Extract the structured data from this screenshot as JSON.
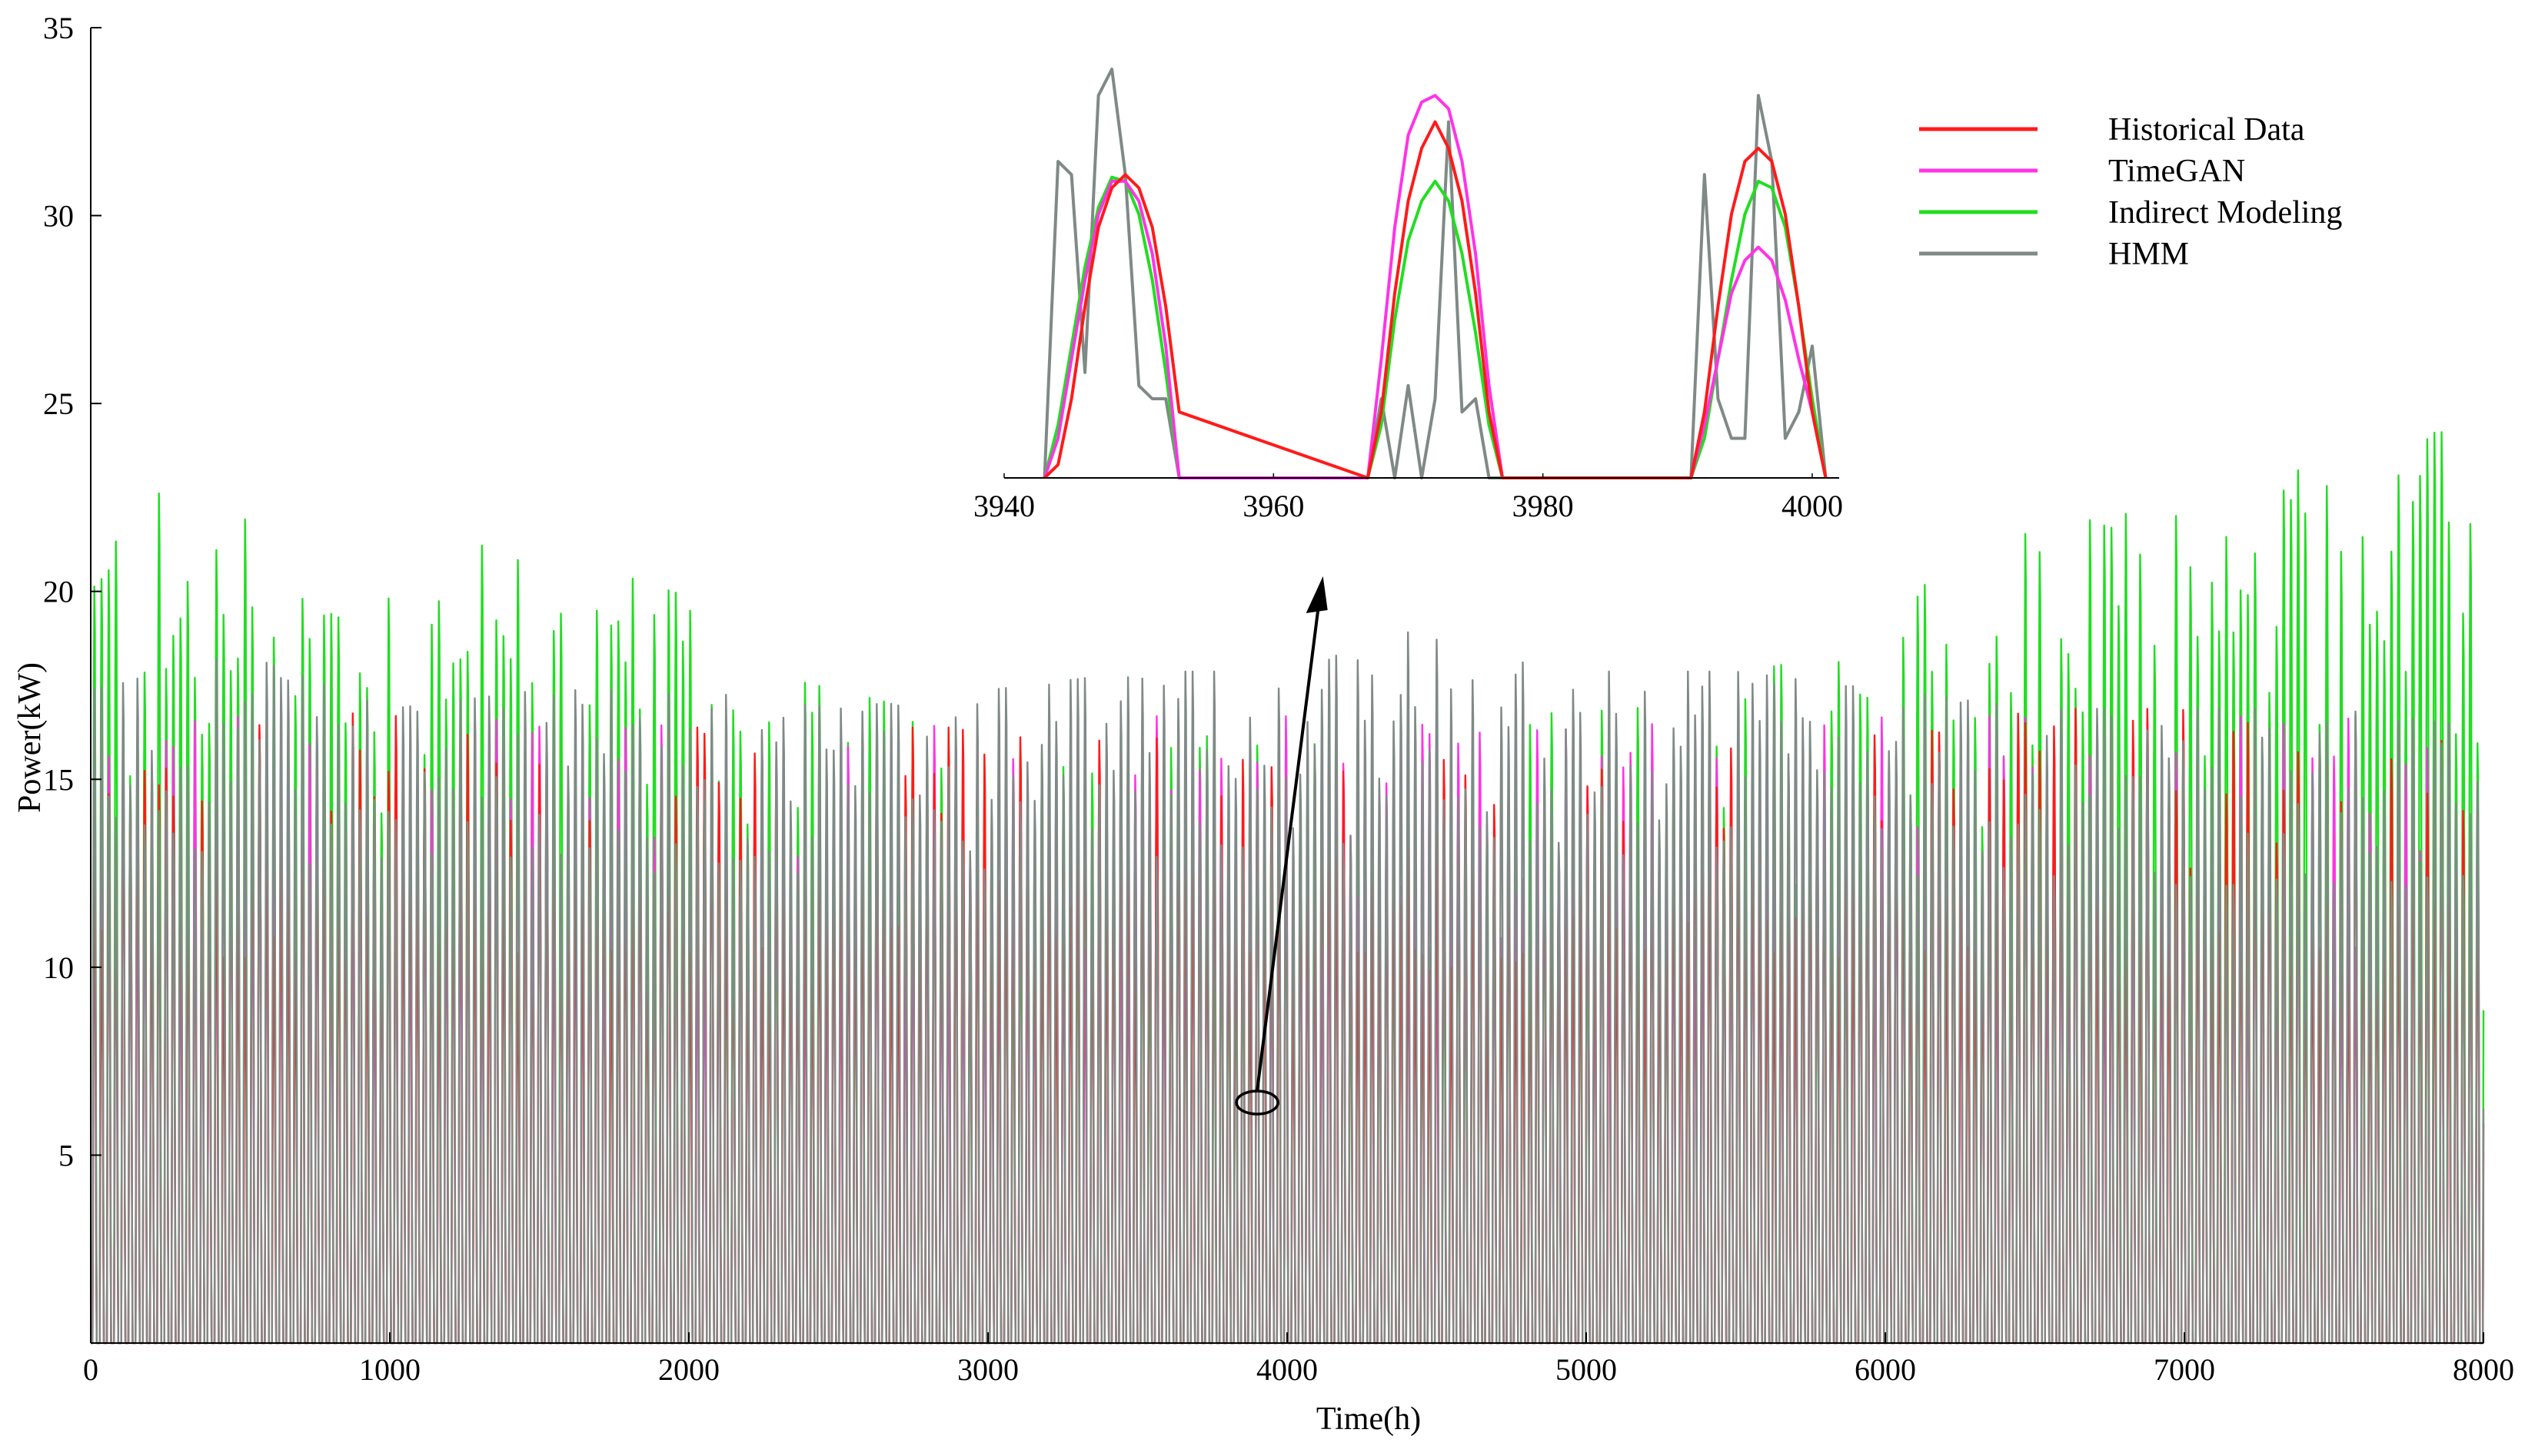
{
  "chart_data": {
    "type": "line",
    "title": "",
    "xlabel": "Time(h)",
    "ylabel": "Power(kW)",
    "xlim": [
      0,
      8000
    ],
    "ylim": [
      0,
      35
    ],
    "x_ticks": [
      "0",
      "1000",
      "2000",
      "3000",
      "4000",
      "5000",
      "6000",
      "7000",
      "8000"
    ],
    "y_ticks": [
      "5",
      "10",
      "15",
      "20",
      "25",
      "30",
      "35"
    ],
    "legend_position": "top-right",
    "legend": [
      {
        "name": "Historical Data",
        "color": "#ff1a1a"
      },
      {
        "name": "TimeGAN",
        "color": "#ff33e6"
      },
      {
        "name": "Indirect Modeling",
        "color": "#22dd22"
      },
      {
        "name": "HMM",
        "color": "#7f8a86"
      }
    ],
    "main_peak_envelope": {
      "x": [
        0,
        500,
        1000,
        1500,
        2000,
        2500,
        3000,
        3500,
        4000,
        4500,
        5000,
        5500,
        6000,
        6500,
        7000,
        7500,
        8000
      ],
      "Historical Data": [
        16,
        16.5,
        17,
        16.5,
        16.5,
        16.5,
        16.5,
        16.5,
        15.5,
        16,
        15.5,
        16,
        16.5,
        17,
        17,
        16.5,
        16
      ],
      "TimeGAN": [
        16.5,
        16.8,
        16.5,
        16.8,
        16.5,
        16.5,
        16.8,
        16.8,
        16.8,
        16.8,
        16.8,
        16.8,
        16.8,
        16.8,
        16.8,
        16.8,
        16.5
      ],
      "Indirect Modeling": [
        23,
        22.5,
        21.5,
        21.3,
        20,
        17.5,
        16.5,
        16.5,
        16,
        16.5,
        17,
        17.5,
        20,
        21.8,
        22.5,
        24.2,
        24.5
      ],
      "HMM": [
        17.5,
        18.5,
        17,
        17.5,
        17.5,
        17,
        17.5,
        18,
        18,
        19.3,
        18,
        18,
        17.5,
        17,
        17,
        17,
        16.5
      ]
    },
    "inset": {
      "xlim": [
        3940,
        4002
      ],
      "x_ticks": [
        "3940",
        "3960",
        "3980",
        "4000"
      ],
      "series": [
        {
          "name": "Historical Data",
          "x": [
            3943,
            3944,
            3945,
            3946,
            3947,
            3948,
            3949,
            3950,
            3951,
            3952,
            3953,
            3967,
            3968,
            3969,
            3970,
            3971,
            3972,
            3973,
            3974,
            3975,
            3976,
            3977,
            3991,
            3992,
            3993,
            3994,
            3995,
            3996,
            3997,
            3998,
            3999,
            4000,
            4001
          ],
          "y": [
            0,
            1,
            6,
            13,
            19,
            22,
            23,
            22,
            19,
            13,
            5,
            0,
            5,
            14,
            21,
            25,
            27,
            25,
            21,
            14,
            5,
            0,
            0,
            5,
            13,
            20,
            24,
            25,
            24,
            20,
            13,
            5,
            0
          ]
        },
        {
          "name": "TimeGAN",
          "x": [
            3943,
            3944,
            3945,
            3946,
            3947,
            3948,
            3949,
            3950,
            3951,
            3952,
            3953,
            3967,
            3968,
            3969,
            3970,
            3971,
            3972,
            3973,
            3974,
            3975,
            3976,
            3977,
            3991,
            3992,
            3993,
            3994,
            3995,
            3996,
            3997,
            3998,
            3999,
            4000,
            4001
          ],
          "y": [
            0,
            3,
            9,
            15,
            20,
            22.5,
            22.5,
            21,
            17,
            10,
            0,
            0,
            9,
            19,
            26,
            28.5,
            29,
            28,
            24,
            17,
            7,
            0,
            0,
            4,
            9,
            14,
            16.5,
            17.5,
            16.5,
            13.5,
            9,
            5,
            0
          ]
        },
        {
          "name": "Indirect Modeling",
          "x": [
            3943,
            3944,
            3945,
            3946,
            3947,
            3948,
            3949,
            3950,
            3951,
            3952,
            3953,
            3967,
            3968,
            3969,
            3970,
            3971,
            3972,
            3973,
            3974,
            3975,
            3976,
            3977,
            3991,
            3992,
            3993,
            3994,
            3995,
            3996,
            3997,
            3998,
            3999,
            4000,
            4001
          ],
          "y": [
            0,
            4,
            10,
            16,
            20.5,
            22.8,
            22.5,
            20,
            15,
            8,
            0,
            0,
            4,
            12,
            18,
            21,
            22.5,
            21,
            17,
            11,
            4,
            0,
            0,
            3,
            9,
            15,
            20,
            22.5,
            22,
            19,
            13,
            6,
            0
          ]
        },
        {
          "name": "HMM",
          "x": [
            3943,
            3944,
            3945,
            3946,
            3947,
            3948,
            3949,
            3950,
            3951,
            3952,
            3953,
            3967,
            3968,
            3969,
            3970,
            3971,
            3972,
            3973,
            3974,
            3975,
            3976,
            3977,
            3991,
            3992,
            3993,
            3994,
            3995,
            3996,
            3997,
            3998,
            3999,
            4000,
            4001
          ],
          "y": [
            0,
            24,
            23,
            8,
            29,
            31,
            23,
            7,
            6,
            6,
            0,
            0,
            6,
            0,
            7,
            0,
            6,
            27,
            5,
            6,
            0,
            0,
            0,
            23,
            6,
            3,
            3,
            29,
            24,
            3,
            5,
            10,
            0
          ]
        }
      ]
    }
  }
}
